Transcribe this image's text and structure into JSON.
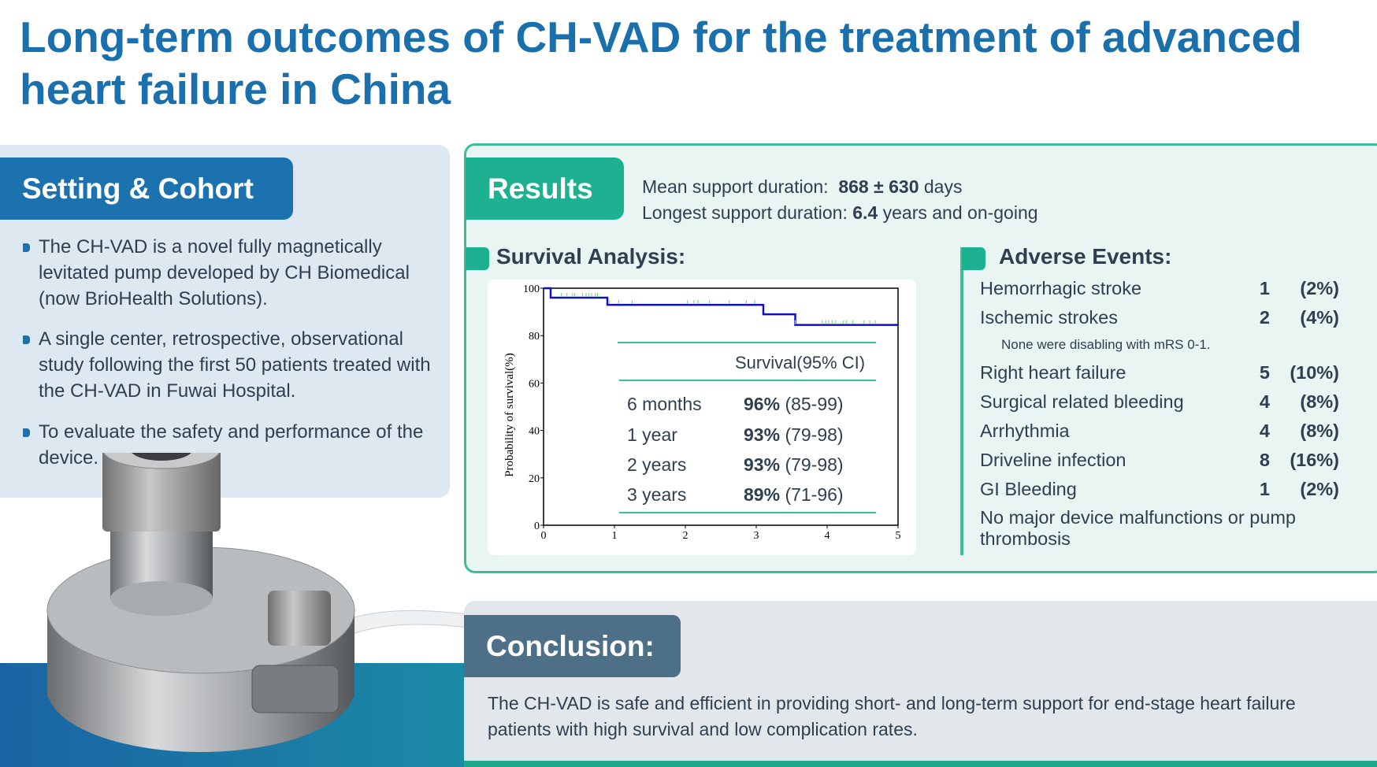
{
  "title": "Long-term outcomes of CH-VAD for the treatment of advanced heart failure in China",
  "setting": {
    "heading": "Setting & Cohort",
    "bullets": [
      "The CH-VAD is a novel fully magnetically levitated pump developed by CH Biomedical (now BrioHealth Solutions).",
      "A single center, retrospective, observational study following the first 50 patients treated with the CH-VAD in Fuwai Hospital.",
      "To evaluate the safety and performance of the device."
    ]
  },
  "results": {
    "heading": "Results",
    "mean_label": "Mean support duration:",
    "mean_value": "868 ± 630",
    "mean_unit": "days",
    "longest_label": "Longest support duration:",
    "longest_value": "6.4",
    "longest_unit": "years and on-going"
  },
  "survival": {
    "heading": "Survival Analysis:",
    "table_header": "Survival(95% CI)",
    "rows": [
      {
        "label": "6 months",
        "value": "96%",
        "ci": "(85-99)"
      },
      {
        "label": "1 year",
        "value": "93%",
        "ci": "(79-98)"
      },
      {
        "label": "2 years",
        "value": "93%",
        "ci": "(79-98)"
      },
      {
        "label": "3 years",
        "value": "89%",
        "ci": "(71-96)"
      }
    ]
  },
  "chart_data": {
    "type": "line",
    "ylabel": "Probability of survival(%)",
    "xlabel": "",
    "xlim": [
      0,
      5
    ],
    "ylim": [
      0,
      100
    ],
    "xticks": [
      "0",
      "1",
      "2",
      "3",
      "4",
      "5"
    ],
    "yticks": [
      "0",
      "20",
      "40",
      "60",
      "80",
      "100"
    ],
    "series": [
      {
        "step": true,
        "color": "#1010c0",
        "x": [
          0,
          0.1,
          0.9,
          3.1,
          3.55,
          5
        ],
        "y": [
          100,
          96,
          93,
          89,
          84.5,
          84.5
        ]
      }
    ],
    "censored": {
      "color": "#7ee07e",
      "points": [
        [
          0.25,
          96
        ],
        [
          0.33,
          96
        ],
        [
          0.41,
          96
        ],
        [
          0.44,
          96
        ],
        [
          0.55,
          96
        ],
        [
          0.6,
          96
        ],
        [
          0.64,
          96
        ],
        [
          0.68,
          96
        ],
        [
          0.73,
          96
        ],
        [
          0.76,
          96
        ],
        [
          0.93,
          93
        ],
        [
          1.06,
          93
        ],
        [
          1.25,
          93
        ],
        [
          2.03,
          93
        ],
        [
          2.12,
          93
        ],
        [
          2.18,
          93
        ],
        [
          2.34,
          93
        ],
        [
          2.62,
          93
        ],
        [
          2.86,
          93
        ],
        [
          2.98,
          93
        ],
        [
          3.55,
          84.5
        ],
        [
          3.93,
          84.5
        ],
        [
          3.98,
          84.5
        ],
        [
          4.02,
          84.5
        ],
        [
          4.07,
          84.5
        ],
        [
          4.12,
          84.5
        ],
        [
          4.23,
          84.5
        ],
        [
          4.27,
          84.5
        ],
        [
          4.36,
          84.5
        ],
        [
          4.52,
          84.5
        ],
        [
          4.6,
          84.5
        ],
        [
          4.68,
          84.5
        ]
      ]
    },
    "grid": false
  },
  "adverse": {
    "heading": "Adverse Events:",
    "items": [
      {
        "label": "Hemorrhagic stroke",
        "count": "1",
        "pct": "(2%)"
      },
      {
        "label": "Ischemic strokes",
        "count": "2",
        "pct": "(4%)"
      },
      {
        "label": "Right heart failure",
        "count": "5",
        "pct": "(10%)"
      },
      {
        "label": "Surgical related bleeding",
        "count": "4",
        "pct": "(8%)"
      },
      {
        "label": "Arrhythmia",
        "count": "4",
        "pct": "(8%)"
      },
      {
        "label": "Driveline infection",
        "count": "8",
        "pct": "(16%)"
      },
      {
        "label": "GI Bleeding",
        "count": "1",
        "pct": "(2%)"
      }
    ],
    "stroke_note": "None were disabling with mRS 0-1.",
    "footer": "No major device malfunctions or pump thrombosis"
  },
  "conclusion": {
    "heading": "Conclusion:",
    "text": "The CH-VAD is safe and efficient in providing short- and long-term support for end-stage heart failure patients with high survival and low complication rates."
  },
  "colors": {
    "title": "#1a6fad",
    "setting": "#1b72ae",
    "results": "#1db192",
    "conclusion": "#4e6f88"
  }
}
